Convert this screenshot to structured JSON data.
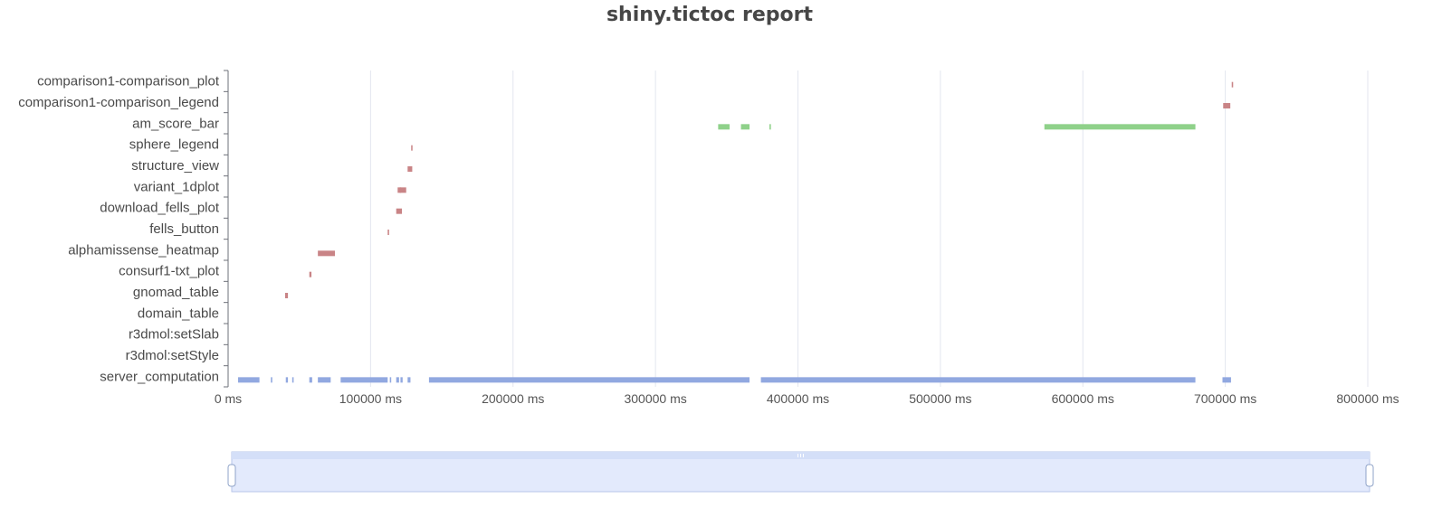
{
  "chart_data": {
    "type": "timeline",
    "title": "shiny.tictoc report",
    "x_unit": "ms",
    "xlim": [
      0,
      800000
    ],
    "x_ticks": [
      0,
      100000,
      200000,
      300000,
      400000,
      500000,
      600000,
      700000,
      800000
    ],
    "x_tick_labels": [
      "0 ms",
      "100000 ms",
      "200000 ms",
      "300000 ms",
      "400000 ms",
      "500000 ms",
      "600000 ms",
      "700000 ms",
      "800000 ms"
    ],
    "grid": true,
    "categories": [
      "server_computation",
      "r3dmol:setStyle",
      "r3dmol:setSlab",
      "domain_table",
      "gnomad_table",
      "consurf1-txt_plot",
      "alphamissense_heatmap",
      "fells_button",
      "download_fells_plot",
      "variant_1dplot",
      "structure_view",
      "sphere_legend",
      "am_score_bar",
      "comparison1-comparison_legend",
      "comparison1-comparison_plot"
    ],
    "series": [
      {
        "color": "#91a8e0",
        "events": [
          {
            "category": "server_computation",
            "start": 7000,
            "end": 22000
          },
          {
            "category": "server_computation",
            "start": 30000,
            "end": 31000
          },
          {
            "category": "server_computation",
            "start": 40500,
            "end": 42000
          },
          {
            "category": "server_computation",
            "start": 45000,
            "end": 46000
          },
          {
            "category": "server_computation",
            "start": 57000,
            "end": 59000
          },
          {
            "category": "server_computation",
            "start": 63000,
            "end": 72000
          },
          {
            "category": "server_computation",
            "start": 79000,
            "end": 112000
          },
          {
            "category": "server_computation",
            "start": 113500,
            "end": 114500
          },
          {
            "category": "server_computation",
            "start": 118000,
            "end": 120000
          },
          {
            "category": "server_computation",
            "start": 121000,
            "end": 122500
          },
          {
            "category": "server_computation",
            "start": 126000,
            "end": 128000
          },
          {
            "category": "server_computation",
            "start": 141000,
            "end": 366000
          },
          {
            "category": "server_computation",
            "start": 374000,
            "end": 679000
          },
          {
            "category": "server_computation",
            "start": 698000,
            "end": 704000
          }
        ]
      },
      {
        "color": "#c98486",
        "events": [
          {
            "category": "comparison1-comparison_plot",
            "start": 704500,
            "end": 705500
          },
          {
            "category": "comparison1-comparison_legend",
            "start": 698500,
            "end": 703500
          },
          {
            "category": "sphere_legend",
            "start": 128500,
            "end": 129300
          },
          {
            "category": "structure_view",
            "start": 128300,
            "end": 129100
          },
          {
            "category": "structure_view",
            "start": 126000,
            "end": 129000
          },
          {
            "category": "variant_1dplot",
            "start": 120500,
            "end": 121300
          },
          {
            "category": "variant_1dplot",
            "start": 119000,
            "end": 125000
          },
          {
            "category": "download_fells_plot",
            "start": 118000,
            "end": 122000
          },
          {
            "category": "fells_button",
            "start": 112000,
            "end": 113000
          },
          {
            "category": "alphamissense_heatmap",
            "start": 63000,
            "end": 75000
          },
          {
            "category": "consurf1-txt_plot",
            "start": 57000,
            "end": 58500
          },
          {
            "category": "gnomad_table",
            "start": 40000,
            "end": 42000
          }
        ]
      },
      {
        "color": "#8fd18a",
        "events": [
          {
            "category": "am_score_bar",
            "start": 344000,
            "end": 352000
          },
          {
            "category": "am_score_bar",
            "start": 360000,
            "end": 366000
          },
          {
            "category": "am_score_bar",
            "start": 380000,
            "end": 381000
          },
          {
            "category": "am_score_bar",
            "start": 573000,
            "end": 679000
          }
        ]
      }
    ]
  },
  "zoom_slider": {
    "start": 0,
    "end": 1
  }
}
